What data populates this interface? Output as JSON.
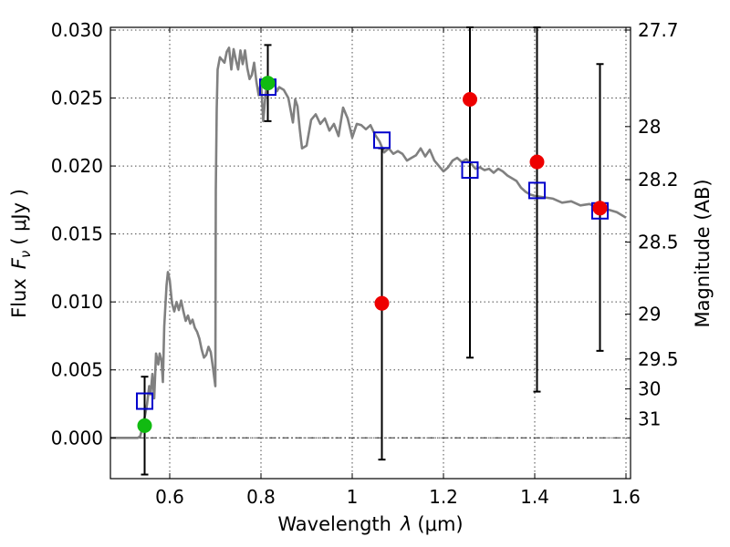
{
  "chart_data": {
    "type": "scatter",
    "xlabel_text": "Wavelength",
    "xlabel_symbol": "λ",
    "xlabel_unit": "(μm)",
    "ylabel_text": "Flux",
    "ylabel_symbol": "F",
    "ylabel_subscript": "ν",
    "ylabel_unit": "( μJy )",
    "y2label": "Magnitude (AB)",
    "xlim": [
      0.47,
      1.61
    ],
    "ylim": [
      -0.003,
      0.0302
    ],
    "xticks": [
      0.6,
      0.8,
      1.0,
      1.2,
      1.4,
      1.6
    ],
    "xtick_labels": [
      "0.6",
      "0.8",
      "1",
      "1.2",
      "1.4",
      "1.6"
    ],
    "yticks": [
      0.0,
      0.005,
      0.01,
      0.015,
      0.02,
      0.025,
      0.03
    ],
    "ytick_labels": [
      "0.000",
      "0.005",
      "0.010",
      "0.015",
      "0.020",
      "0.025",
      "0.030"
    ],
    "mag_ticks": [
      {
        "label": "27.7",
        "flux": 0.03
      },
      {
        "label": "28",
        "flux": 0.0229
      },
      {
        "label": "28.2",
        "flux": 0.019
      },
      {
        "label": "28.5",
        "flux": 0.0144
      },
      {
        "label": "29",
        "flux": 0.0091
      },
      {
        "label": "29.5",
        "flux": 0.0058
      },
      {
        "label": "30",
        "flux": 0.0036
      },
      {
        "label": "31",
        "flux": 0.0014
      }
    ],
    "grid": true,
    "zero_line": 0.0,
    "colors": {
      "model": "#808080",
      "model_fluxes": "#0000cc",
      "detections": "#11bb11",
      "observed": "#ee0000",
      "errorbars": "#000000"
    },
    "series": [
      {
        "name": "model_spectrum",
        "kind": "line",
        "x": [
          0.47,
          0.51,
          0.53,
          0.535,
          0.54,
          0.545,
          0.55,
          0.555,
          0.558,
          0.562,
          0.566,
          0.57,
          0.575,
          0.578,
          0.582,
          0.585,
          0.588,
          0.59,
          0.593,
          0.596,
          0.6,
          0.605,
          0.61,
          0.615,
          0.62,
          0.625,
          0.63,
          0.635,
          0.64,
          0.645,
          0.65,
          0.655,
          0.66,
          0.665,
          0.67,
          0.675,
          0.68,
          0.685,
          0.69,
          0.695,
          0.7,
          0.701,
          0.703,
          0.705,
          0.71,
          0.715,
          0.72,
          0.725,
          0.73,
          0.735,
          0.74,
          0.745,
          0.75,
          0.755,
          0.76,
          0.765,
          0.77,
          0.775,
          0.78,
          0.785,
          0.79,
          0.795,
          0.8,
          0.805,
          0.81,
          0.815,
          0.82,
          0.825,
          0.83,
          0.835,
          0.84,
          0.85,
          0.86,
          0.865,
          0.87,
          0.875,
          0.88,
          0.885,
          0.89,
          0.9,
          0.91,
          0.92,
          0.93,
          0.94,
          0.95,
          0.96,
          0.97,
          0.98,
          0.99,
          1.0,
          1.01,
          1.02,
          1.03,
          1.04,
          1.05,
          1.06,
          1.07,
          1.08,
          1.09,
          1.1,
          1.11,
          1.12,
          1.13,
          1.14,
          1.15,
          1.16,
          1.17,
          1.18,
          1.19,
          1.2,
          1.21,
          1.22,
          1.23,
          1.24,
          1.25,
          1.26,
          1.27,
          1.28,
          1.29,
          1.3,
          1.31,
          1.32,
          1.33,
          1.34,
          1.35,
          1.36,
          1.37,
          1.38,
          1.39,
          1.4,
          1.42,
          1.44,
          1.46,
          1.48,
          1.5,
          1.52,
          1.54,
          1.56,
          1.58,
          1.6
        ],
        "y": [
          0.0,
          0.0,
          0.0,
          0.0001,
          0.0007,
          0.0015,
          0.0024,
          0.0038,
          0.0032,
          0.0047,
          0.0029,
          0.0062,
          0.0054,
          0.0062,
          0.0057,
          0.0041,
          0.0082,
          0.0094,
          0.0112,
          0.0122,
          0.0116,
          0.0099,
          0.0093,
          0.01,
          0.0094,
          0.0101,
          0.0093,
          0.0086,
          0.009,
          0.0084,
          0.0087,
          0.0081,
          0.0078,
          0.0073,
          0.0065,
          0.0059,
          0.0061,
          0.0067,
          0.0063,
          0.0051,
          0.0038,
          0.0182,
          0.0242,
          0.0271,
          0.028,
          0.0278,
          0.0276,
          0.0284,
          0.0287,
          0.0271,
          0.0286,
          0.0278,
          0.0271,
          0.0285,
          0.0275,
          0.0285,
          0.0272,
          0.0264,
          0.0267,
          0.0276,
          0.0262,
          0.0252,
          0.0262,
          0.0233,
          0.0253,
          0.0262,
          0.0265,
          0.0263,
          0.026,
          0.0255,
          0.0258,
          0.0256,
          0.025,
          0.0241,
          0.0232,
          0.0249,
          0.0244,
          0.0227,
          0.0213,
          0.0215,
          0.0234,
          0.0238,
          0.0231,
          0.0235,
          0.0226,
          0.0231,
          0.0222,
          0.0243,
          0.0235,
          0.0221,
          0.0231,
          0.023,
          0.0227,
          0.023,
          0.0223,
          0.0218,
          0.021,
          0.0213,
          0.0209,
          0.0211,
          0.0209,
          0.0204,
          0.0206,
          0.0208,
          0.0213,
          0.0207,
          0.0212,
          0.0204,
          0.02,
          0.0196,
          0.0199,
          0.0204,
          0.0206,
          0.0203,
          0.0205,
          0.0202,
          0.0198,
          0.0199,
          0.0197,
          0.0198,
          0.0195,
          0.0198,
          0.0196,
          0.0193,
          0.0191,
          0.0189,
          0.0184,
          0.0181,
          0.0179,
          0.0178,
          0.0177,
          0.0176,
          0.0173,
          0.0174,
          0.0171,
          0.0172,
          0.0169,
          0.0168,
          0.0166,
          0.0162
        ]
      },
      {
        "name": "model_fluxes",
        "kind": "open_square",
        "x": [
          0.545,
          0.815,
          1.065,
          1.258,
          1.405,
          1.543
        ],
        "y": [
          0.0027,
          0.0258,
          0.0219,
          0.0197,
          0.0182,
          0.0167
        ]
      },
      {
        "name": "detections",
        "kind": "filled_circle",
        "x": [
          0.545,
          0.815
        ],
        "y": [
          0.0009,
          0.0261
        ]
      },
      {
        "name": "observed_fluxes",
        "kind": "filled_circle",
        "x": [
          1.065,
          1.258,
          1.405,
          1.543
        ],
        "y": [
          0.0099,
          0.0249,
          0.0203,
          0.0169
        ]
      }
    ],
    "errorbars": [
      {
        "x": 0.545,
        "low": -0.0027,
        "high": 0.0045
      },
      {
        "x": 0.815,
        "low": 0.0233,
        "high": 0.0289
      },
      {
        "x": 1.065,
        "low": -0.0016,
        "high": 0.0213
      },
      {
        "x": 1.258,
        "low": 0.0059,
        "high": 0.0302
      },
      {
        "x": 1.405,
        "low": 0.0034,
        "high": 0.0302
      },
      {
        "x": 1.543,
        "low": 0.0064,
        "high": 0.0275
      }
    ]
  }
}
